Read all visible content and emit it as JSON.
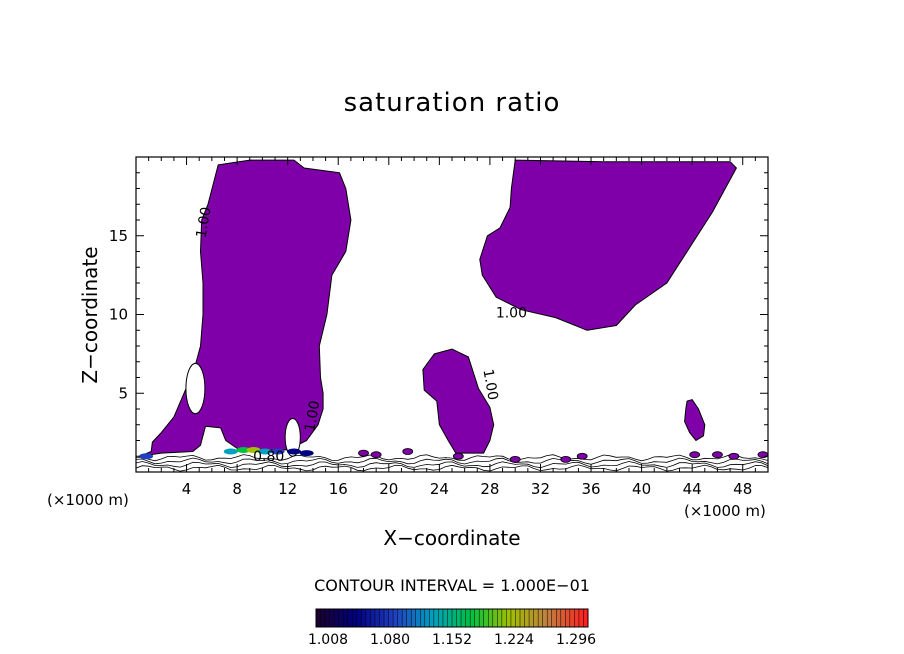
{
  "chart_data": {
    "type": "contour",
    "title": "saturation ratio",
    "xlabel": "X−coordinate",
    "ylabel": "Z−coordinate",
    "x_unit_label": "(×1000 m)",
    "xlim": [
      0,
      50
    ],
    "ylim": [
      0,
      20
    ],
    "x_ticks": [
      4,
      8,
      12,
      16,
      20,
      24,
      28,
      32,
      36,
      40,
      44,
      48
    ],
    "y_ticks": [
      5,
      10,
      15
    ],
    "contour_interval_text": "CONTOUR INTERVAL = 1.000E−01",
    "contour_labels": [
      {
        "text": "1.00",
        "x": 5.7,
        "y": 15.8
      },
      {
        "text": "1.00",
        "x": 29.7,
        "y": 9.8
      },
      {
        "text": "1.00",
        "x": 27.7,
        "y": 5.5
      },
      {
        "text": "1.00",
        "x": 14.3,
        "y": 3.5
      },
      {
        "text": "0.80",
        "x": 10.5,
        "y": 0.7
      }
    ],
    "filled_regions": [
      {
        "name": "left-cloud",
        "level": 1.008,
        "outline": [
          [
            0.3,
            1.0
          ],
          [
            1.2,
            1.3
          ],
          [
            1.3,
            1.9
          ],
          [
            2.0,
            2.5
          ],
          [
            3.0,
            3.5
          ],
          [
            3.8,
            5.0
          ],
          [
            4.6,
            6.5
          ],
          [
            5.1,
            8.0
          ],
          [
            5.3,
            10.0
          ],
          [
            5.3,
            12.0
          ],
          [
            5.1,
            14.0
          ],
          [
            5.2,
            16.0
          ],
          [
            5.7,
            17.0
          ],
          [
            6.5,
            19.5
          ],
          [
            9.0,
            19.8
          ],
          [
            12.5,
            19.8
          ],
          [
            13.3,
            19.3
          ],
          [
            16.1,
            19.0
          ],
          [
            16.6,
            18.0
          ],
          [
            17.0,
            16.0
          ],
          [
            16.6,
            14.0
          ],
          [
            15.5,
            12.5
          ],
          [
            15.1,
            10.0
          ],
          [
            14.5,
            8.0
          ],
          [
            14.6,
            6.0
          ],
          [
            14.8,
            5.0
          ],
          [
            14.8,
            4.0
          ],
          [
            14.4,
            3.0
          ],
          [
            13.5,
            2.0
          ],
          [
            12.0,
            1.4
          ],
          [
            10.0,
            1.4
          ],
          [
            8.0,
            1.5
          ],
          [
            7.1,
            2.0
          ],
          [
            6.7,
            2.8
          ],
          [
            5.5,
            2.9
          ],
          [
            5.1,
            1.7
          ],
          [
            4.5,
            1.3
          ],
          [
            2.0,
            1.2
          ]
        ]
      },
      {
        "name": "right-cloud",
        "level": 1.008,
        "outline": [
          [
            30.0,
            19.8
          ],
          [
            37.0,
            19.7
          ],
          [
            47.0,
            19.7
          ],
          [
            47.5,
            19.3
          ],
          [
            45.6,
            16.5
          ],
          [
            44.0,
            14.5
          ],
          [
            42.0,
            12.0
          ],
          [
            39.5,
            10.6
          ],
          [
            38.0,
            9.3
          ],
          [
            35.7,
            9.0
          ],
          [
            33.2,
            9.8
          ],
          [
            30.5,
            10.3
          ],
          [
            28.5,
            11.1
          ],
          [
            27.4,
            12.5
          ],
          [
            27.2,
            13.5
          ],
          [
            27.8,
            15.0
          ],
          [
            28.8,
            15.5
          ],
          [
            29.6,
            16.8
          ],
          [
            29.7,
            18.0
          ]
        ]
      },
      {
        "name": "middle-cloud",
        "level": 1.008,
        "outline": [
          [
            22.7,
            6.5
          ],
          [
            23.6,
            7.5
          ],
          [
            25.0,
            7.8
          ],
          [
            26.3,
            7.3
          ],
          [
            27.1,
            5.3
          ],
          [
            28.0,
            4.1
          ],
          [
            28.3,
            3.0
          ],
          [
            28.0,
            2.0
          ],
          [
            27.5,
            1.2
          ],
          [
            25.3,
            1.2
          ],
          [
            24.7,
            2.0
          ],
          [
            24.0,
            3.0
          ],
          [
            23.8,
            4.5
          ],
          [
            22.8,
            5.2
          ]
        ]
      },
      {
        "name": "small-cloud-right",
        "level": 1.008,
        "outline": [
          [
            43.6,
            4.5
          ],
          [
            44.0,
            4.6
          ],
          [
            44.5,
            4.0
          ],
          [
            45.0,
            3.0
          ],
          [
            44.9,
            2.3
          ],
          [
            44.3,
            2.0
          ],
          [
            43.8,
            2.5
          ],
          [
            43.4,
            3.2
          ],
          [
            43.5,
            4.0
          ]
        ]
      }
    ],
    "colorbar": {
      "min": 1.008,
      "max": 1.3,
      "tick_labels": [
        "1.008",
        "1.080",
        "1.152",
        "1.224",
        "1.296"
      ],
      "colors": [
        "#1a0030",
        "#000080",
        "#2040c0",
        "#00a0c0",
        "#00c040",
        "#a0c000",
        "#c08040",
        "#ff2020"
      ]
    },
    "fill_color": "#7f00a8",
    "contour_color": "#000000"
  }
}
